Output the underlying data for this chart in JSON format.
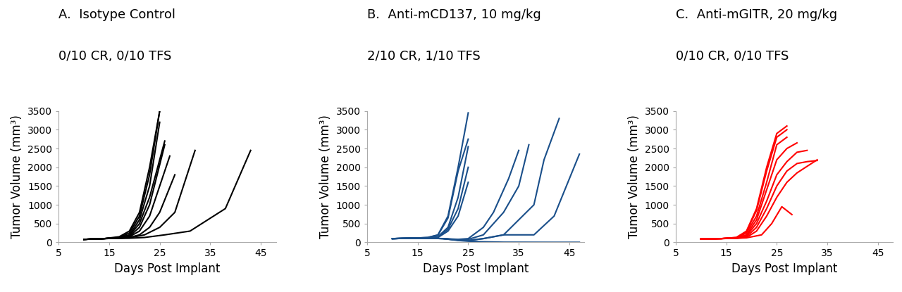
{
  "panels": [
    {
      "title_line1": "A.  Isotype Control",
      "title_line2": "0/10 CR, 0/10 TFS",
      "color": "#000000",
      "xlabel": "Days Post Implant",
      "ylabel": "Tumor Volume (mm³)",
      "xlim": [
        5,
        48
      ],
      "ylim": [
        0,
        3500
      ],
      "xticks": [
        5,
        15,
        25,
        35,
        45
      ],
      "yticks": [
        0,
        500,
        1000,
        1500,
        2000,
        2500,
        3000,
        3500
      ],
      "curves": [
        {
          "x": [
            10,
            14,
            17,
            19,
            21,
            23,
            25
          ],
          "y": [
            80,
            100,
            150,
            300,
            800,
            2000,
            3500
          ]
        },
        {
          "x": [
            10,
            14,
            17,
            19,
            21,
            23,
            25
          ],
          "y": [
            80,
            100,
            130,
            250,
            700,
            1800,
            3500
          ]
        },
        {
          "x": [
            10,
            14,
            17,
            19,
            21,
            23,
            25
          ],
          "y": [
            80,
            100,
            130,
            200,
            600,
            1500,
            3200
          ]
        },
        {
          "x": [
            10,
            14,
            17,
            19,
            21,
            23,
            26
          ],
          "y": [
            80,
            100,
            120,
            180,
            500,
            1200,
            2700
          ]
        },
        {
          "x": [
            10,
            14,
            17,
            19,
            21,
            23,
            26
          ],
          "y": [
            80,
            100,
            120,
            160,
            400,
            1000,
            2600
          ]
        },
        {
          "x": [
            10,
            14,
            17,
            19,
            21,
            23,
            25,
            27
          ],
          "y": [
            80,
            100,
            120,
            150,
            300,
            700,
            1500,
            2300
          ]
        },
        {
          "x": [
            10,
            14,
            17,
            19,
            21,
            23,
            25,
            28
          ],
          "y": [
            80,
            100,
            110,
            130,
            200,
            400,
            800,
            1800
          ]
        },
        {
          "x": [
            10,
            14,
            17,
            19,
            22,
            25,
            28,
            32
          ],
          "y": [
            80,
            100,
            110,
            120,
            200,
            400,
            800,
            2450
          ]
        },
        {
          "x": [
            10,
            14,
            17,
            19,
            22,
            26,
            31,
            38,
            43
          ],
          "y": [
            80,
            100,
            110,
            110,
            130,
            200,
            300,
            900,
            2450
          ]
        }
      ]
    },
    {
      "title_line1": "B.  Anti-mCD137, 10 mg/kg",
      "title_line2": "2/10 CR, 1/10 TFS",
      "color": "#1a4f8a",
      "xlabel": "Days Post Implant",
      "ylabel": "Tumor Volume (mm³)",
      "xlim": [
        5,
        48
      ],
      "ylim": [
        0,
        3500
      ],
      "xticks": [
        5,
        15,
        25,
        35,
        45
      ],
      "yticks": [
        0,
        500,
        1000,
        1500,
        2000,
        2500,
        3000,
        3500
      ],
      "curves": [
        {
          "x": [
            10,
            14,
            17,
            19,
            21,
            23,
            25
          ],
          "y": [
            100,
            110,
            130,
            200,
            700,
            2000,
            3450
          ]
        },
        {
          "x": [
            10,
            14,
            17,
            19,
            21,
            23,
            25
          ],
          "y": [
            100,
            110,
            130,
            190,
            650,
            1900,
            2750
          ]
        },
        {
          "x": [
            10,
            14,
            17,
            19,
            21,
            23,
            25
          ],
          "y": [
            100,
            110,
            120,
            150,
            400,
            1200,
            2550
          ]
        },
        {
          "x": [
            10,
            14,
            17,
            19,
            21,
            23,
            25
          ],
          "y": [
            100,
            110,
            120,
            140,
            350,
            900,
            2000
          ]
        },
        {
          "x": [
            10,
            14,
            17,
            19,
            21,
            23,
            25
          ],
          "y": [
            100,
            110,
            120,
            130,
            300,
            700,
            1600
          ]
        },
        {
          "x": [
            10,
            14,
            17,
            20,
            23,
            25,
            28,
            30,
            33,
            35
          ],
          "y": [
            100,
            110,
            110,
            100,
            80,
            100,
            400,
            800,
            1700,
            2450
          ]
        },
        {
          "x": [
            10,
            14,
            17,
            20,
            23,
            25,
            28,
            32,
            35,
            37
          ],
          "y": [
            100,
            110,
            110,
            100,
            70,
            80,
            200,
            800,
            1500,
            2600
          ]
        },
        {
          "x": [
            10,
            14,
            17,
            20,
            23,
            25,
            28,
            32,
            38,
            40,
            43
          ],
          "y": [
            100,
            110,
            110,
            100,
            60,
            50,
            100,
            200,
            1000,
            2200,
            3300
          ]
        },
        {
          "x": [
            10,
            14,
            17,
            20,
            23,
            25,
            28,
            32,
            38,
            42,
            47
          ],
          "y": [
            100,
            110,
            110,
            100,
            60,
            50,
            100,
            200,
            200,
            700,
            2350
          ]
        },
        {
          "x": [
            10,
            14,
            17,
            20,
            23,
            25,
            28,
            32,
            38,
            42,
            47
          ],
          "y": [
            100,
            110,
            110,
            100,
            50,
            30,
            15,
            5,
            3,
            2,
            2
          ]
        }
      ]
    },
    {
      "title_line1": "C.  Anti-mGITR, 20 mg/kg",
      "title_line2": "0/10 CR, 0/10 TFS",
      "color": "#ff0000",
      "xlabel": "Days Post Implant",
      "ylabel": "Tumor Volume (mm³)",
      "xlim": [
        5,
        48
      ],
      "ylim": [
        0,
        3500
      ],
      "xticks": [
        5,
        15,
        25,
        35,
        45
      ],
      "yticks": [
        0,
        500,
        1000,
        1500,
        2000,
        2500,
        3000,
        3500
      ],
      "curves": [
        {
          "x": [
            10,
            14,
            17,
            19,
            21,
            23,
            25,
            27
          ],
          "y": [
            90,
            100,
            130,
            300,
            900,
            2000,
            2900,
            3100
          ]
        },
        {
          "x": [
            10,
            14,
            17,
            19,
            21,
            23,
            25,
            27
          ],
          "y": [
            90,
            100,
            130,
            280,
            850,
            1900,
            2800,
            3000
          ]
        },
        {
          "x": [
            10,
            14,
            17,
            19,
            21,
            23,
            25,
            27
          ],
          "y": [
            90,
            100,
            120,
            250,
            700,
            1600,
            2600,
            2800
          ]
        },
        {
          "x": [
            10,
            14,
            17,
            19,
            21,
            23,
            25,
            27,
            29
          ],
          "y": [
            90,
            100,
            120,
            200,
            600,
            1400,
            2200,
            2500,
            2650
          ]
        },
        {
          "x": [
            10,
            14,
            17,
            19,
            21,
            23,
            25,
            27,
            29,
            31
          ],
          "y": [
            90,
            100,
            120,
            180,
            500,
            1100,
            1800,
            2150,
            2400,
            2450
          ]
        },
        {
          "x": [
            10,
            14,
            17,
            19,
            21,
            23,
            25,
            27,
            29,
            31,
            33
          ],
          "y": [
            90,
            100,
            110,
            150,
            400,
            900,
            1500,
            1900,
            2100,
            2150,
            2180
          ]
        },
        {
          "x": [
            10,
            14,
            17,
            19,
            21,
            23,
            25,
            27,
            29,
            33
          ],
          "y": [
            90,
            100,
            110,
            130,
            300,
            700,
            1200,
            1600,
            1850,
            2200
          ]
        },
        {
          "x": [
            10,
            14,
            17,
            19,
            22,
            24,
            26,
            28
          ],
          "y": [
            90,
            100,
            110,
            120,
            200,
            500,
            950,
            740
          ]
        }
      ]
    }
  ],
  "bg_color": "#ffffff",
  "title_fontsize": 13,
  "axis_label_fontsize": 12,
  "tick_fontsize": 10,
  "line_width": 1.5
}
